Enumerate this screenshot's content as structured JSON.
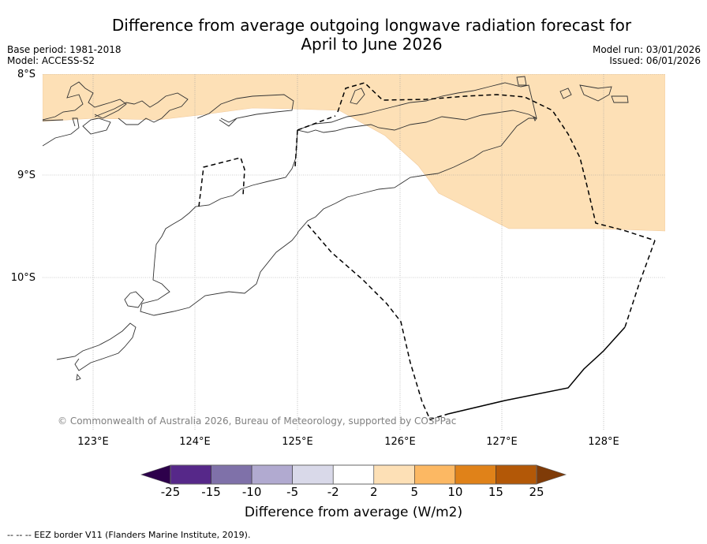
{
  "header": {
    "title_line1": "Difference from average outgoing longwave radiation forecast for",
    "title_line2": "April to June 2026",
    "base_period": "Base period: 1981-2018",
    "model": "Model: ACCESS-S2",
    "model_run": "Model run: 03/01/2026",
    "issued": "Issued: 06/01/2026"
  },
  "map": {
    "lat_labels": [
      "8°S",
      "9°S",
      "10°S"
    ],
    "lon_labels": [
      "123°E",
      "124°E",
      "125°E",
      "126°E",
      "127°E",
      "128°E"
    ],
    "copyright": "© Commonwealth of Australia 2026, Bureau of Meteorology, supported by COSPPac",
    "anomaly_region": {
      "category": "2 to 5",
      "color": "#fde0b6"
    }
  },
  "colorbar": {
    "ticks": [
      "-25",
      "-15",
      "-10",
      "-5",
      "-2",
      "2",
      "5",
      "10",
      "15",
      "25"
    ],
    "colors": [
      "#562889",
      "#7f71a9",
      "#b1aad0",
      "#d9d9e9",
      "#ffffff",
      "#fde0b6",
      "#fcb863",
      "#e08219",
      "#b35807"
    ],
    "under_color": "#2d004b",
    "over_color": "#7f3b08",
    "label": "Difference from average (W/m2)"
  },
  "footnote": "--  --  -- EEZ border V11 (Flanders Marine Institute, 2019)."
}
